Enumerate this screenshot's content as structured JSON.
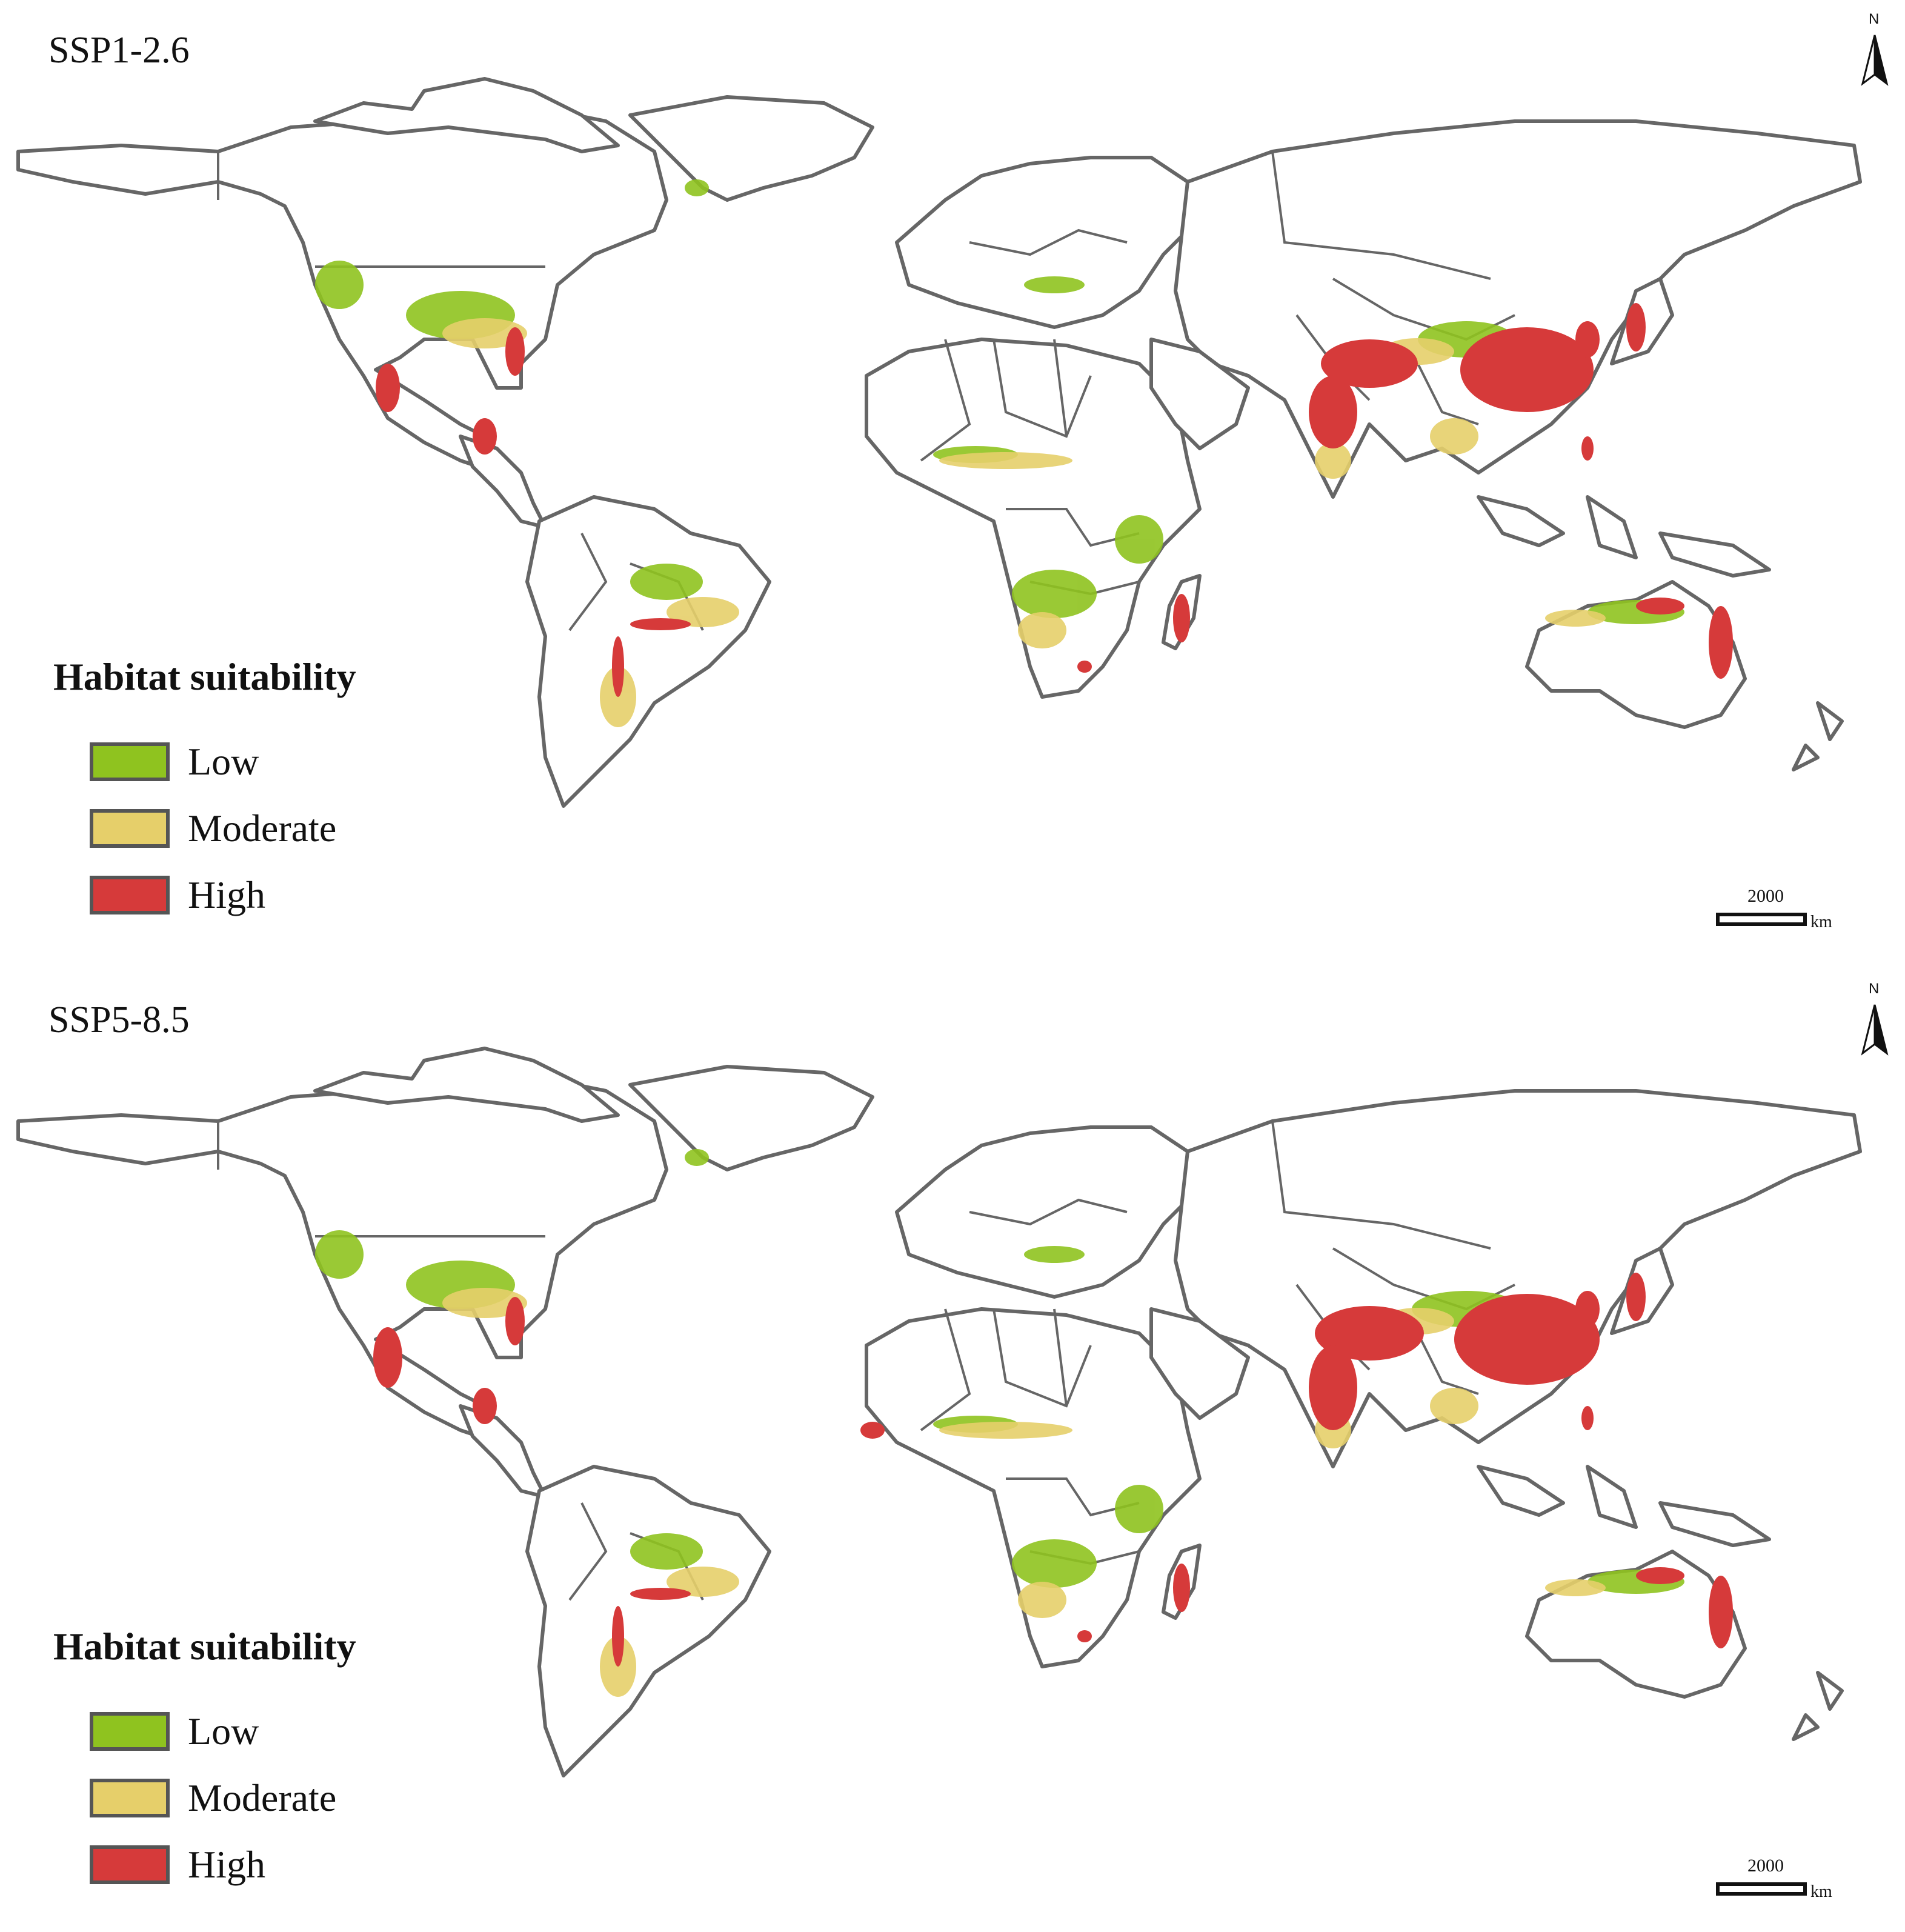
{
  "panels": [
    {
      "title": "SSP1-2.6"
    },
    {
      "title": "SSP5-8.5"
    }
  ],
  "north_arrow": {
    "label": "N"
  },
  "legend": {
    "title": "Habitat suitability",
    "items": [
      {
        "label": "Low",
        "color": "#8fc31f"
      },
      {
        "label": "Moderate",
        "color": "#e6cf6a"
      },
      {
        "label": "High",
        "color": "#d63a3a"
      }
    ]
  },
  "scale_bar": {
    "value": "2000",
    "unit": "km"
  },
  "colors": {
    "outline": "#666666",
    "background": "#ffffff"
  }
}
